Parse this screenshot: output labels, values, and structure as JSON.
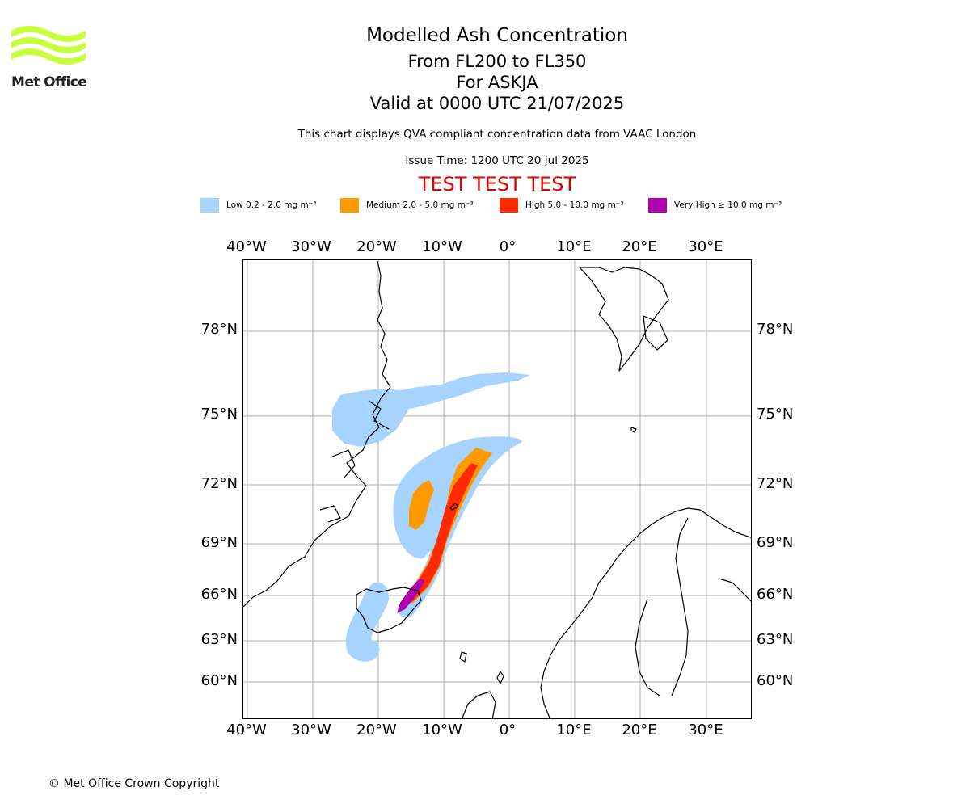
{
  "logo": {
    "text": "Met Office",
    "colors": {
      "waves": "#c8ff3c",
      "text": "#222222"
    }
  },
  "title": "Modelled Ash Concentration",
  "subtitle_lines": [
    "From FL200 to FL350",
    "For ASKJA",
    "Valid at 0000 UTC 21/07/2025"
  ],
  "description": "This chart displays QVA compliant concentration data from VAAC London",
  "issue_time": "Issue Time: 1200 UTC 20 Jul 2025",
  "test_banner": "TEST TEST TEST",
  "legend": [
    {
      "label": "Low 0.2 - 2.0 mg m⁻³",
      "color": "#a6d4ff"
    },
    {
      "label": "Medium 2.0 - 5.0 mg m⁻³",
      "color": "#ff9a00"
    },
    {
      "label": "High 5.0 - 10.0 mg m⁻³",
      "color": "#ff2a00"
    },
    {
      "label": "Very High ≥ 10.0 mg m⁻³",
      "color": "#b000b0"
    }
  ],
  "map": {
    "lon_ticks": [
      "40°W",
      "30°W",
      "20°W",
      "10°W",
      "0°",
      "10°E",
      "20°E",
      "30°E"
    ],
    "lat_ticks": [
      "78°N",
      "75°N",
      "72°N",
      "69°N",
      "66°N",
      "63°N",
      "60°N"
    ],
    "grid": true,
    "colors": {
      "coast": "#000000",
      "grid": "#b0b0b0"
    }
  },
  "copyright": "© Met Office Crown Copyright"
}
